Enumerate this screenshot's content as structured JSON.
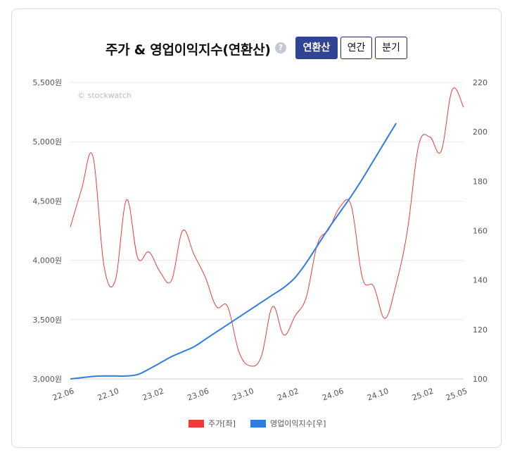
{
  "header": {
    "title": "주가 & 영업이익지수(연환산)",
    "help_label": "?",
    "tabs": [
      {
        "label": "연환산",
        "active": true
      },
      {
        "label": "연간",
        "active": false
      },
      {
        "label": "분기",
        "active": false
      }
    ]
  },
  "watermark": "© stockwatch",
  "colors": {
    "price": "#ee3a3a",
    "index": "#2f7de1"
  },
  "chart_data": {
    "type": "line",
    "x": [
      "22.06",
      "22.07",
      "22.08",
      "22.09",
      "22.10",
      "22.11",
      "22.12",
      "23.01",
      "23.02",
      "23.03",
      "23.04",
      "23.05",
      "23.06",
      "23.07",
      "23.08",
      "23.09",
      "23.10",
      "23.11",
      "23.12",
      "24.01",
      "24.02",
      "24.03",
      "24.04",
      "24.05",
      "24.06",
      "24.07",
      "24.08",
      "24.09",
      "24.10",
      "24.11",
      "24.12",
      "25.01",
      "25.02",
      "25.03",
      "25.04",
      "25.05"
    ],
    "x_tick_labels": [
      "22.06",
      "22.10",
      "23.02",
      "23.06",
      "23.10",
      "24.02",
      "24.06",
      "24.10",
      "25.02",
      "25.05"
    ],
    "left_axis": {
      "range": [
        3000,
        5500
      ],
      "ticks": [
        "3,000원",
        "3,500원",
        "4,000원",
        "4,500원",
        "5,000원",
        "5,500원"
      ],
      "tick_values": [
        3000,
        3500,
        4000,
        4500,
        5000,
        5500
      ]
    },
    "right_axis": {
      "range": [
        100,
        220
      ],
      "ticks": [
        "100",
        "120",
        "140",
        "160",
        "180",
        "200",
        "220"
      ],
      "tick_values": [
        100,
        120,
        140,
        160,
        180,
        200,
        220
      ]
    },
    "grid": true,
    "legend_position": "bottom",
    "series": [
      {
        "name": "주가[좌]",
        "axis": "left",
        "color": "#ee3a3a",
        "points": [
          [
            "22.06",
            4280
          ],
          [
            "22.07",
            4600
          ],
          [
            "22.08",
            4880
          ],
          [
            "22.09",
            3950
          ],
          [
            "22.10",
            3830
          ],
          [
            "22.11",
            4510
          ],
          [
            "22.12",
            4020
          ],
          [
            "23.01",
            4070
          ],
          [
            "23.02",
            3900
          ],
          [
            "23.03",
            3830
          ],
          [
            "23.04",
            4250
          ],
          [
            "23.05",
            4050
          ],
          [
            "23.06",
            3860
          ],
          [
            "23.07",
            3610
          ],
          [
            "23.08",
            3610
          ],
          [
            "23.09",
            3230
          ],
          [
            "23.10",
            3110
          ],
          [
            "23.11",
            3190
          ],
          [
            "23.12",
            3610
          ],
          [
            "24.01",
            3370
          ],
          [
            "24.02",
            3530
          ],
          [
            "24.03",
            3690
          ],
          [
            "24.04",
            4140
          ],
          [
            "24.05",
            4260
          ],
          [
            "24.06",
            4450
          ],
          [
            "24.07",
            4460
          ],
          [
            "24.08",
            3850
          ],
          [
            "24.09",
            3780
          ],
          [
            "24.10",
            3510
          ],
          [
            "24.11",
            3800
          ],
          [
            "24.12",
            4250
          ],
          [
            "25.01",
            4970
          ],
          [
            "25.02",
            5040
          ],
          [
            "25.03",
            4920
          ],
          [
            "25.04",
            5440
          ],
          [
            "25.05",
            5290
          ]
        ]
      },
      {
        "name": "영업이익지수[우]",
        "axis": "right",
        "color": "#2f7de1",
        "points": [
          [
            "22.06",
            100
          ],
          [
            "22.07",
            100.5
          ],
          [
            "22.08",
            101
          ],
          [
            "22.09",
            101.2
          ],
          [
            "22.10",
            101.2
          ],
          [
            "22.11",
            101.2
          ],
          [
            "22.12",
            101.8
          ],
          [
            "23.01",
            104
          ],
          [
            "23.02",
            106.5
          ],
          [
            "23.03",
            109
          ],
          [
            "23.04",
            111
          ],
          [
            "23.05",
            113
          ],
          [
            "23.06",
            116
          ],
          [
            "23.07",
            119
          ],
          [
            "23.08",
            122
          ],
          [
            "23.09",
            125
          ],
          [
            "23.10",
            128
          ],
          [
            "23.11",
            131
          ],
          [
            "23.12",
            134
          ],
          [
            "24.01",
            137
          ],
          [
            "24.02",
            141
          ],
          [
            "24.03",
            147
          ],
          [
            "24.04",
            154
          ],
          [
            "24.05",
            161
          ],
          [
            "24.06",
            167.5
          ],
          [
            "24.07",
            174
          ],
          [
            "24.08",
            181
          ],
          [
            "24.09",
            188.5
          ],
          [
            "24.10",
            196
          ],
          [
            "24.11",
            203.5
          ]
        ]
      }
    ]
  }
}
